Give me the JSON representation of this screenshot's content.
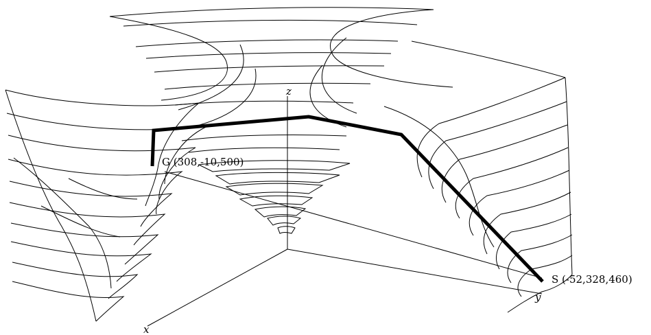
{
  "axes": {
    "x": "x",
    "y": "y",
    "z": "z"
  },
  "goal": {
    "label": "G (308,-10,500)"
  },
  "start": {
    "label": "S (-52,328,460)"
  }
}
